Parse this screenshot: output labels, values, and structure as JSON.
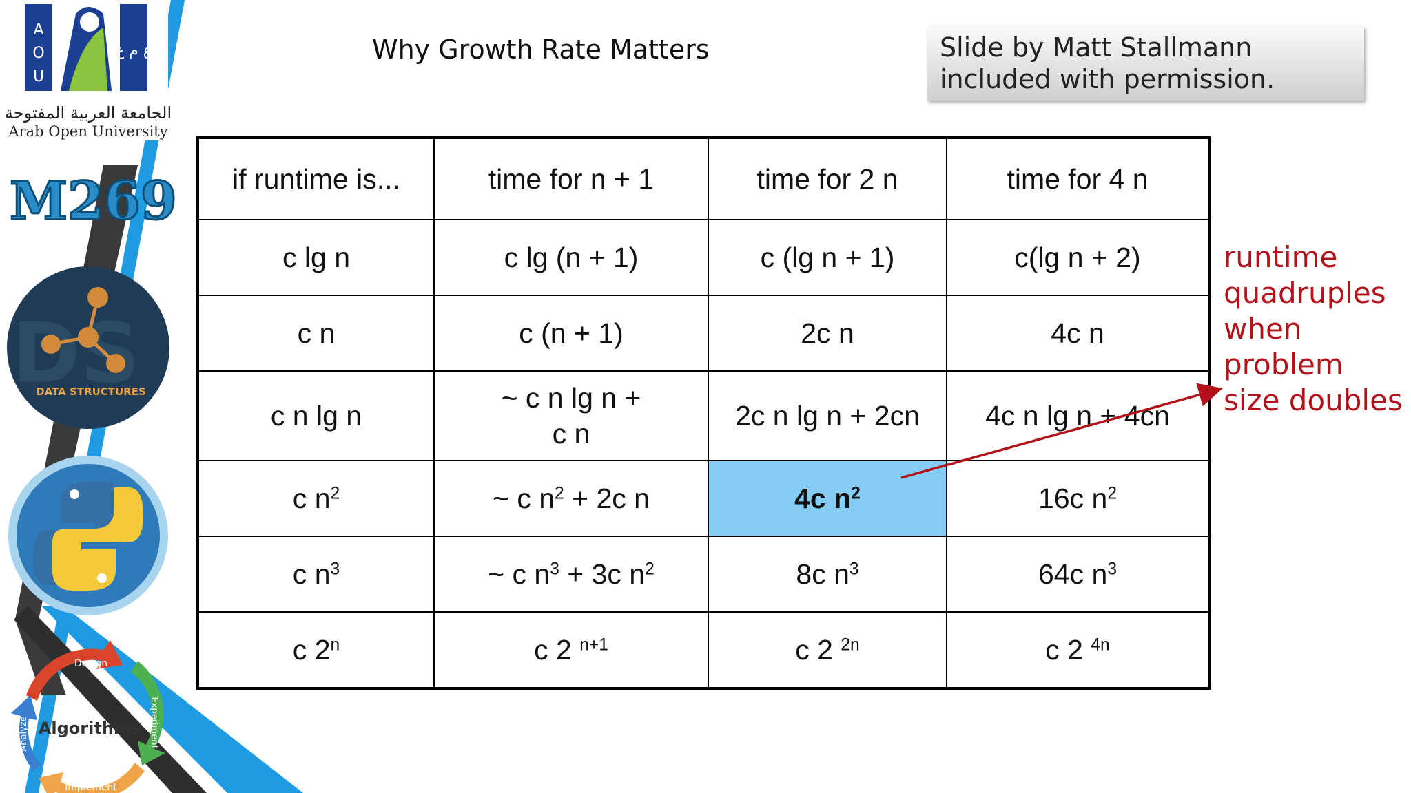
{
  "slide": {
    "title": "Why Growth Rate Matters",
    "credit": "Slide by Matt Stallmann included with permission."
  },
  "sidebar": {
    "university_arabic": "الجامعة العربية المفتوحة",
    "university_english": "Arab Open University",
    "logo_letters": [
      "A",
      "O",
      "U"
    ],
    "course_code": "M269",
    "ds_label": "DATA STRUCTURES",
    "cycle_center": "Algorithms",
    "cycle_steps": [
      "Design",
      "Implement",
      "Analyze",
      "Experiment"
    ],
    "icons": [
      "aou-logo-icon",
      "data-structures-icon",
      "python-logo-icon",
      "algorithm-cycle-icon"
    ]
  },
  "table": {
    "headers": [
      "if runtime is...",
      "time for n + 1",
      "time for 2 n",
      "time for 4 n"
    ],
    "rows": [
      [
        "c lg n",
        "c lg (n + 1)",
        "c (lg n + 1)",
        "c(lg n + 2)"
      ],
      [
        "c n",
        "c (n + 1)",
        "2c n",
        "4c n"
      ],
      [
        "c n lg n",
        "~ c n lg n + c n",
        "2c n lg n + 2cn",
        "4c n lg n + 4cn"
      ],
      [
        "c n²",
        "~ c n² + 2c n",
        "4c n²",
        "16c n²"
      ],
      [
        "c n³",
        "~ c n³ + 3c n²",
        "8c n³",
        "64c n³"
      ],
      [
        "c 2ⁿ",
        "c 2 ⁿ⁺¹",
        "c 2 ²ⁿ",
        "c 2 ⁴ⁿ"
      ]
    ],
    "highlight_cell": "4c n²",
    "highlight_color": "#85cdf4"
  },
  "annotation": {
    "lines": [
      "runtime",
      "quadruples",
      "when",
      "problem",
      "size doubles"
    ],
    "color": "#b3121a"
  }
}
